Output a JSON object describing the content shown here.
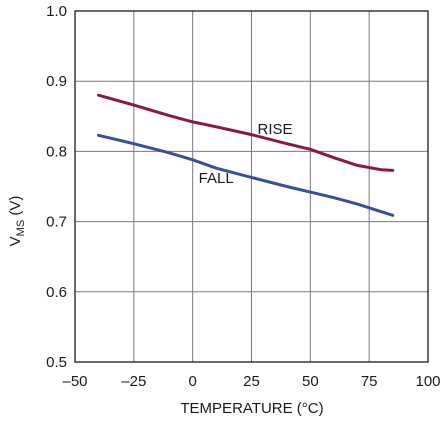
{
  "chart_data": {
    "type": "line",
    "title": "",
    "xlabel": "TEMPERATURE (°C)",
    "ylabel_main": "V",
    "ylabel_sub": "MS",
    "ylabel_tail": " (V)",
    "xlim": [
      -50,
      100
    ],
    "ylim": [
      0.5,
      1.0
    ],
    "xticks": [
      -50,
      -25,
      0,
      25,
      50,
      75,
      100
    ],
    "xtick_labels": [
      "–50",
      "–25",
      "0",
      "25",
      "50",
      "75",
      "100"
    ],
    "yticks": [
      0.5,
      0.6,
      0.7,
      0.8,
      0.9,
      1.0
    ],
    "ytick_labels": [
      "0.5",
      "0.6",
      "0.7",
      "0.8",
      "0.9",
      "1.0"
    ],
    "grid": true,
    "series": [
      {
        "name": "RISE",
        "color": "#8b1a3a",
        "x": [
          -40,
          -25,
          -10,
          0,
          10,
          25,
          40,
          50,
          60,
          70,
          80,
          85
        ],
        "y": [
          0.88,
          0.866,
          0.851,
          0.842,
          0.835,
          0.824,
          0.811,
          0.803,
          0.791,
          0.78,
          0.774,
          0.773
        ]
      },
      {
        "name": "FALL",
        "color": "#3a4f9a",
        "x": [
          -40,
          -25,
          -10,
          0,
          10,
          25,
          40,
          50,
          60,
          70,
          85
        ],
        "y": [
          0.823,
          0.811,
          0.798,
          0.788,
          0.776,
          0.763,
          0.75,
          0.742,
          0.734,
          0.725,
          0.709
        ]
      }
    ],
    "annotations": [
      {
        "text": "RISE",
        "x": 35,
        "y": 0.825
      },
      {
        "text": "FALL",
        "x": 10,
        "y": 0.755
      }
    ]
  }
}
